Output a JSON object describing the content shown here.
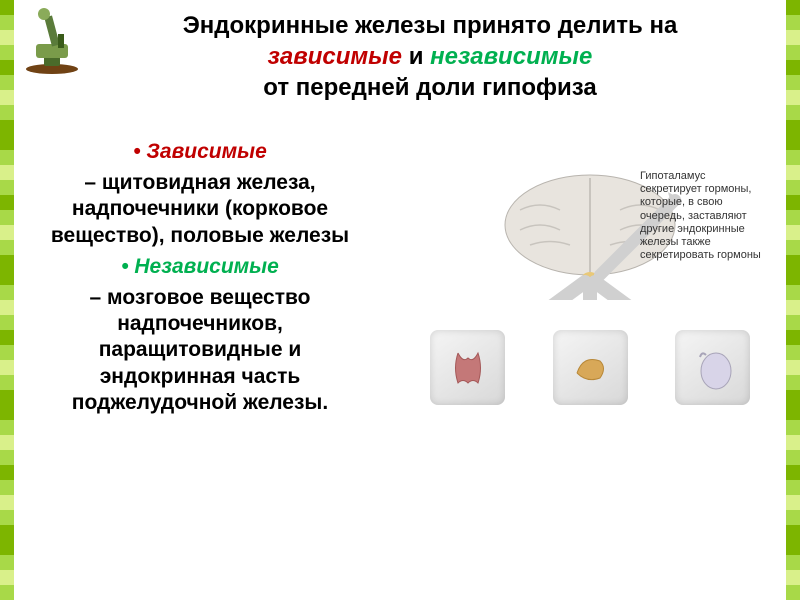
{
  "title": {
    "line1": "Эндокринные железы принято делить на",
    "dependent": "зависимые",
    "and": " и ",
    "independent": "независимые",
    "line2": "от передней доли гипофиза"
  },
  "left": {
    "dep_header": "•  Зависимые",
    "dep_text": "– щитовидная железа, надпочечники (корковое вещество), половые железы",
    "indep_header": "• Независимые",
    "indep_text": "– мозговое вещество надпочечников, паращитовидные и эндокринная часть поджелудочной железы."
  },
  "caption": "Гипоталамус секретирует гормоны, которые, в свою очередь, заставляют другие эндокринные железы также секретировать гормоны",
  "colors": {
    "dep": "#c00000",
    "indep": "#00b050",
    "border_gradient": [
      "#7db500",
      "#a8d948",
      "#d9f08a",
      "#a8d948",
      "#7db500",
      "#a8d948",
      "#d9f08a",
      "#a8d948",
      "#7db500"
    ]
  }
}
